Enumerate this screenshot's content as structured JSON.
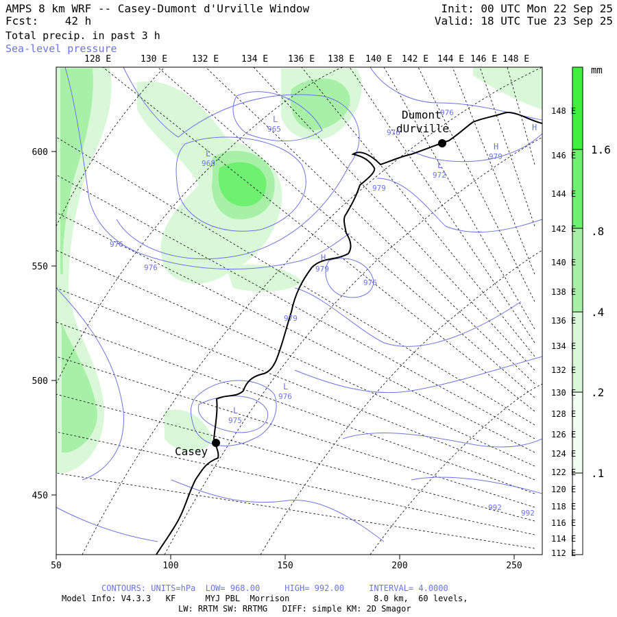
{
  "header": {
    "title": "AMPS 8 km WRF -- Casey-Dumont d'Urville Window",
    "forecast_label": "Fcst:",
    "forecast_value": "42 h",
    "field_1": "Total precip. in past 3 h",
    "field_2": "Sea-level pressure",
    "init": "Init: 00 UTC Mon 22 Sep 25",
    "valid": "Valid: 18 UTC Tue 23 Sep 25"
  },
  "top_lon_labels": [
    "128 E",
    "130 E",
    "132 E",
    "134 E",
    "136 E",
    "138 E",
    "140 E",
    "142 E",
    "144 E",
    "146 E",
    "148 E"
  ],
  "right_lon_labels": [
    "148 E",
    "146 E",
    "144 E",
    "142 E",
    "140 E",
    "138 E",
    "136 E",
    "134 E",
    "132 E",
    "130 E",
    "128 E",
    "126 E",
    "124 E",
    "122 E",
    "120 E",
    "118 E",
    "116 E",
    "114 E",
    "112 E"
  ],
  "x_axis": {
    "ticks": [
      50,
      100,
      150,
      200,
      250
    ],
    "range": [
      50,
      263
    ]
  },
  "y_axis": {
    "ticks": [
      450,
      500,
      550,
      600
    ],
    "range": [
      423,
      637
    ]
  },
  "colorbar": {
    "unit": "mm",
    "labels": [
      "1.6",
      ".8",
      ".4",
      ".2",
      ".1"
    ],
    "colors": [
      "#3ff03f",
      "#70f070",
      "#a8f0a8",
      "#d8f8d8",
      "#f2fdf2"
    ]
  },
  "stations": [
    {
      "name_1": "Casey",
      "name_2": ""
    },
    {
      "name_1": "Dumont",
      "name_2": "dUrville"
    }
  ],
  "pressure_labels": {
    "L": [
      "L",
      "L",
      "L",
      "L",
      "L"
    ],
    "H": [
      "H",
      "H",
      "H"
    ],
    "values": [
      "965",
      "968",
      "976",
      "976",
      "979",
      "976",
      "979",
      "979",
      "972",
      "976",
      "975",
      "976",
      "992",
      "992",
      "979",
      "976"
    ]
  },
  "footer": {
    "contours": "CONTOURS: UNITS=hPa  LOW= 968.00     HIGH= 992.00     INTERVAL= 4.0000",
    "model": "Model Info: V4.3.3   KF      MYJ PBL  Morrison                 8.0 km,  60 levels,",
    "physics": "LW: RRTM SW: RRTMG   DIFF: simple KM: 2D Smagor"
  },
  "colors": {
    "contour": "#6b74e0",
    "accent_green": "#3ff03f"
  }
}
